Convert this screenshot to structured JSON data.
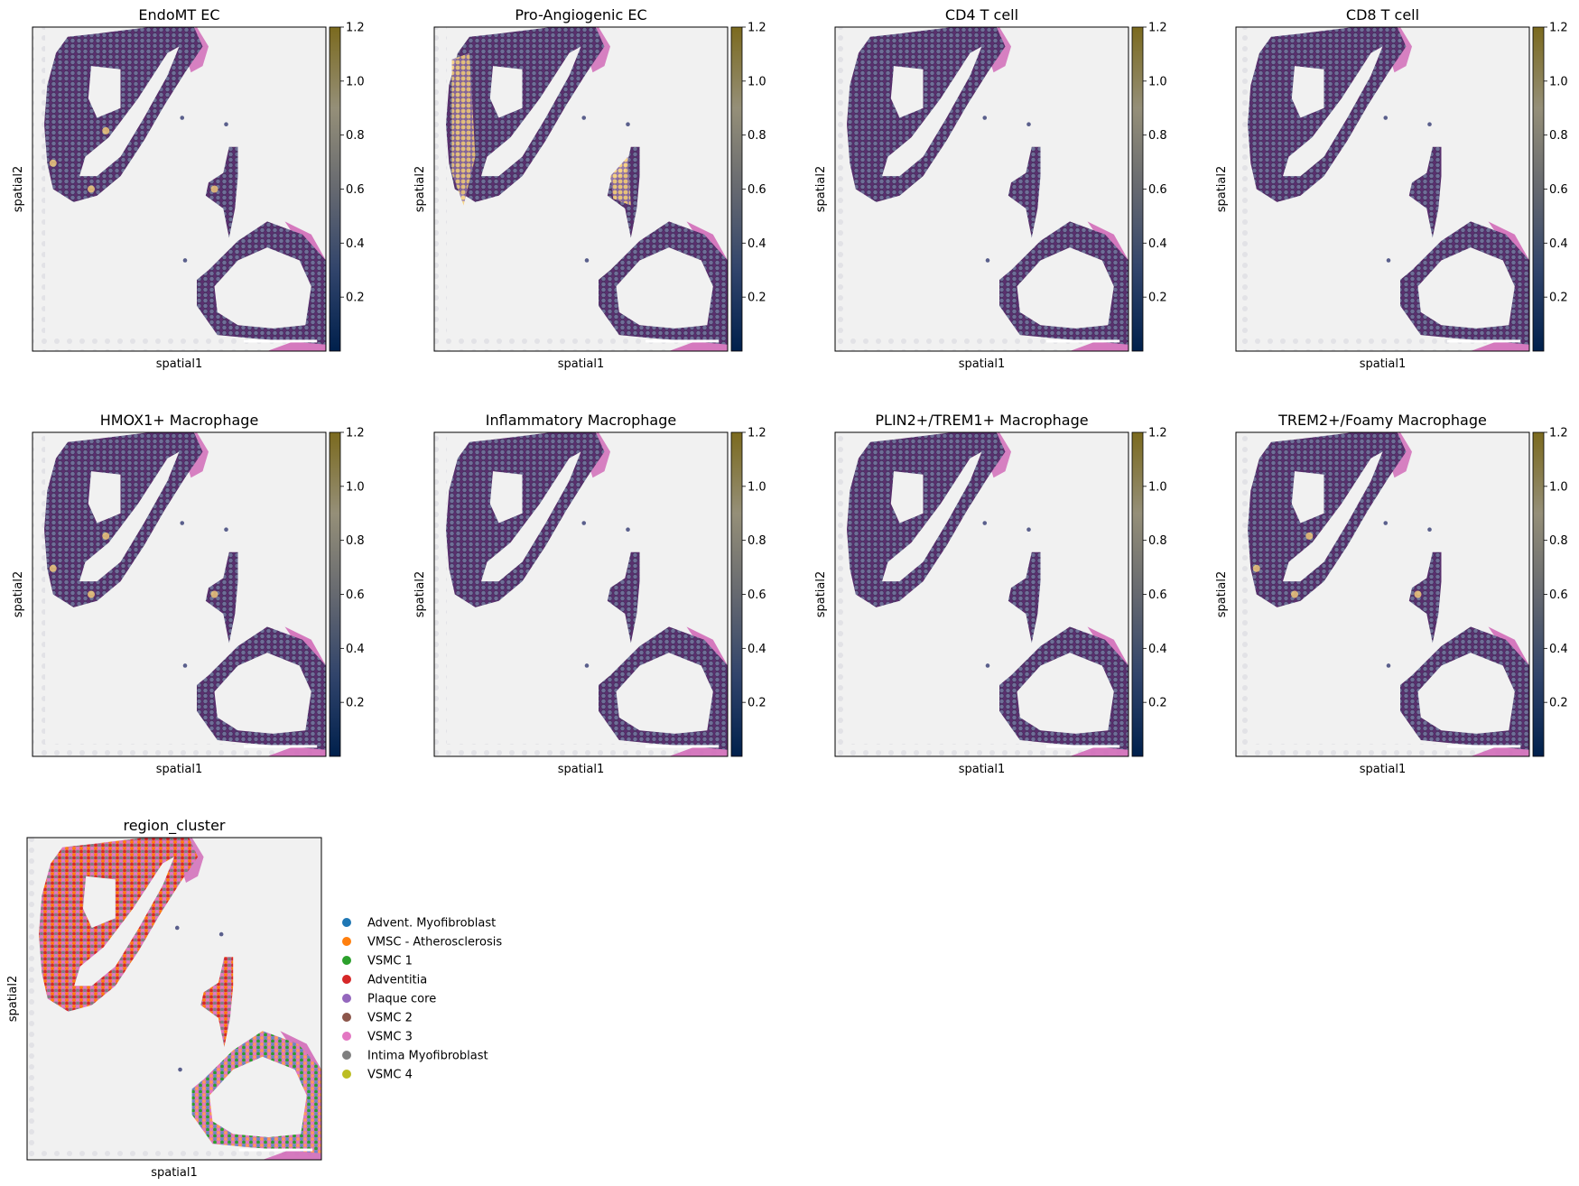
{
  "figure": {
    "colorbar_ticks": [
      "0.2",
      "0.4",
      "0.6",
      "0.8",
      "1.0",
      "1.2"
    ],
    "colorbar_tick_values": [
      0.2,
      0.4,
      0.6,
      0.8,
      1.0,
      1.2
    ],
    "colorbar_range": [
      0,
      1.2
    ],
    "colormap": "cividis",
    "colors": {
      "tissue_pink": "#d16cb8",
      "spot_purple": "#5a2f6e",
      "spot_edge": "#7b7fa8",
      "background": "#f1f1f1",
      "high_yellow": "#f7d07a"
    }
  },
  "panels": [
    {
      "title": "EndoMT EC",
      "xlabel": "spatial1",
      "ylabel": "spatial2",
      "highlight": "low"
    },
    {
      "title": "Pro-Angiogenic EC",
      "xlabel": "spatial1",
      "ylabel": "spatial2",
      "highlight": "high"
    },
    {
      "title": "CD4 T cell",
      "xlabel": "spatial1",
      "ylabel": "spatial2",
      "highlight": "none"
    },
    {
      "title": "CD8 T cell",
      "xlabel": "spatial1",
      "ylabel": "spatial2",
      "highlight": "none"
    },
    {
      "title": "HMOX1+ Macrophage",
      "xlabel": "spatial1",
      "ylabel": "spatial2",
      "highlight": "low"
    },
    {
      "title": "Inflammatory Macrophage",
      "xlabel": "spatial1",
      "ylabel": "spatial2",
      "highlight": "none"
    },
    {
      "title": "PLIN2+/TREM1+ Macrophage",
      "xlabel": "spatial1",
      "ylabel": "spatial2",
      "highlight": "none"
    },
    {
      "title": "TREM2+/Foamy Macrophage",
      "xlabel": "spatial1",
      "ylabel": "spatial2",
      "highlight": "low"
    }
  ],
  "region_panel": {
    "title": "region_cluster",
    "xlabel": "spatial1",
    "ylabel": "spatial2",
    "legend": [
      {
        "label": "Advent. Myofibroblast",
        "color": "#1f77b4"
      },
      {
        "label": "VMSC - Atherosclerosis",
        "color": "#ff7f0e"
      },
      {
        "label": "VSMC 1",
        "color": "#2ca02c"
      },
      {
        "label": "Adventitia",
        "color": "#d62728"
      },
      {
        "label": "Plaque core",
        "color": "#9467bd"
      },
      {
        "label": "VSMC 2",
        "color": "#8c564b"
      },
      {
        "label": "VSMC 3",
        "color": "#e377c2"
      },
      {
        "label": "Intima Myofibroblast",
        "color": "#7f7f7f"
      },
      {
        "label": "VSMC 4",
        "color": "#bcbd22"
      }
    ]
  },
  "chart_data": [
    {
      "type": "scatter",
      "title": "EndoMT EC",
      "xlabel": "spatial1",
      "ylabel": "spatial2",
      "colorbar": {
        "range": [
          0,
          1.2
        ],
        "ticks": [
          0.2,
          0.4,
          0.6,
          0.8,
          1.0,
          1.2
        ]
      }
    },
    {
      "type": "scatter",
      "title": "Pro-Angiogenic EC",
      "xlabel": "spatial1",
      "ylabel": "spatial2",
      "colorbar": {
        "range": [
          0,
          1.2
        ],
        "ticks": [
          0.2,
          0.4,
          0.6,
          0.8,
          1.0,
          1.2
        ]
      }
    },
    {
      "type": "scatter",
      "title": "CD4 T cell",
      "xlabel": "spatial1",
      "ylabel": "spatial2",
      "colorbar": {
        "range": [
          0,
          1.2
        ],
        "ticks": [
          0.2,
          0.4,
          0.6,
          0.8,
          1.0,
          1.2
        ]
      }
    },
    {
      "type": "scatter",
      "title": "CD8 T cell",
      "xlabel": "spatial1",
      "ylabel": "spatial2",
      "colorbar": {
        "range": [
          0,
          1.2
        ],
        "ticks": [
          0.2,
          0.4,
          0.6,
          0.8,
          1.0,
          1.2
        ]
      }
    },
    {
      "type": "scatter",
      "title": "HMOX1+ Macrophage",
      "xlabel": "spatial1",
      "ylabel": "spatial2",
      "colorbar": {
        "range": [
          0,
          1.2
        ],
        "ticks": [
          0.2,
          0.4,
          0.6,
          0.8,
          1.0,
          1.2
        ]
      }
    },
    {
      "type": "scatter",
      "title": "Inflammatory Macrophage",
      "xlabel": "spatial1",
      "ylabel": "spatial2",
      "colorbar": {
        "range": [
          0,
          1.2
        ],
        "ticks": [
          0.2,
          0.4,
          0.6,
          0.8,
          1.0,
          1.2
        ]
      }
    },
    {
      "type": "scatter",
      "title": "PLIN2+/TREM1+ Macrophage",
      "xlabel": "spatial1",
      "ylabel": "spatial2",
      "colorbar": {
        "range": [
          0,
          1.2
        ],
        "ticks": [
          0.2,
          0.4,
          0.6,
          0.8,
          1.0,
          1.2
        ]
      }
    },
    {
      "type": "scatter",
      "title": "TREM2+/Foamy Macrophage",
      "xlabel": "spatial1",
      "ylabel": "spatial2",
      "colorbar": {
        "range": [
          0,
          1.2
        ],
        "ticks": [
          0.2,
          0.4,
          0.6,
          0.8,
          1.0,
          1.2
        ]
      }
    },
    {
      "type": "scatter",
      "title": "region_cluster",
      "xlabel": "spatial1",
      "ylabel": "spatial2",
      "series": [
        {
          "name": "Advent. Myofibroblast",
          "color": "#1f77b4"
        },
        {
          "name": "VMSC - Atherosclerosis",
          "color": "#ff7f0e"
        },
        {
          "name": "VSMC 1",
          "color": "#2ca02c"
        },
        {
          "name": "Adventitia",
          "color": "#d62728"
        },
        {
          "name": "Plaque core",
          "color": "#9467bd"
        },
        {
          "name": "VSMC 2",
          "color": "#8c564b"
        },
        {
          "name": "VSMC 3",
          "color": "#e377c2"
        },
        {
          "name": "Intima Myofibroblast",
          "color": "#7f7f7f"
        },
        {
          "name": "VSMC 4",
          "color": "#bcbd22"
        }
      ]
    }
  ]
}
